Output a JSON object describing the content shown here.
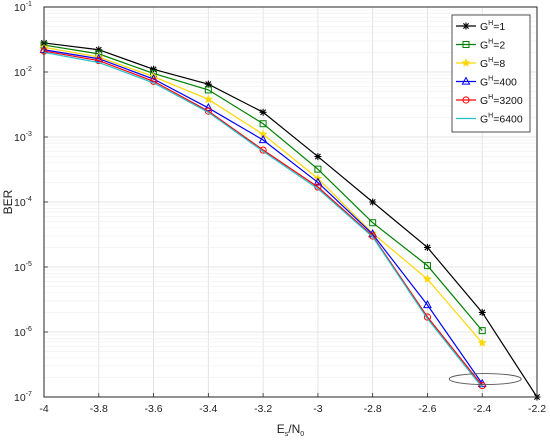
{
  "chart_data": {
    "type": "line",
    "title": "",
    "xlabel": {
      "main": "E",
      "sub1": "s",
      "mid": "/N",
      "sub2": "0"
    },
    "ylabel": "BER",
    "x_scale": "linear",
    "y_scale": "log",
    "xlim": [
      -4,
      -2.2
    ],
    "ylim": [
      1e-07,
      0.1
    ],
    "grid": true,
    "legend_position": "top-right",
    "x_ticks": [
      -4,
      -3.8,
      -3.6,
      -3.4,
      -3.2,
      -3,
      -2.8,
      -2.6,
      -2.4,
      -2.2
    ],
    "x_tick_labels": [
      "-4",
      "-3.8",
      "-3.6",
      "-3.4",
      "-3.2",
      "-3",
      "-2.8",
      "-2.6",
      "-2.4",
      "-2.2"
    ],
    "y_ticks": [
      {
        "base": "10",
        "exp": "-1"
      },
      {
        "base": "10",
        "exp": "-2"
      },
      {
        "base": "10",
        "exp": "-3"
      },
      {
        "base": "10",
        "exp": "-4"
      },
      {
        "base": "10",
        "exp": "-5"
      },
      {
        "base": "10",
        "exp": "-6"
      },
      {
        "base": "10",
        "exp": "-7"
      }
    ],
    "series": [
      {
        "name_base": "G",
        "name_sup": "H",
        "name_rest": "=1",
        "color": "#000000",
        "marker": "asterisk",
        "x": [
          -4,
          -3.8,
          -3.6,
          -3.4,
          -3.2,
          -3,
          -2.8,
          -2.6,
          -2.4,
          -2.2
        ],
        "y": [
          0.028,
          0.022,
          0.011,
          0.0065,
          0.0024,
          0.0005,
          0.0001,
          2e-05,
          2e-06,
          1e-07
        ]
      },
      {
        "name_base": "G",
        "name_sup": "H",
        "name_rest": "=2",
        "color": "#008000",
        "marker": "square",
        "x": [
          -4,
          -3.8,
          -3.6,
          -3.4,
          -3.2,
          -3,
          -2.8,
          -2.6,
          -2.4
        ],
        "y": [
          0.026,
          0.019,
          0.0095,
          0.0053,
          0.0016,
          0.00032,
          4.8e-05,
          1.05e-05,
          1.05e-06
        ]
      },
      {
        "name_base": "G",
        "name_sup": "H",
        "name_rest": "=8",
        "color": "#ffd700",
        "marker": "star",
        "x": [
          -4,
          -3.8,
          -3.6,
          -3.4,
          -3.2,
          -3,
          -2.8,
          -2.6,
          -2.4
        ],
        "y": [
          0.024,
          0.017,
          0.0085,
          0.0038,
          0.0011,
          0.00023,
          3.3e-05,
          6.5e-06,
          6.8e-07
        ]
      },
      {
        "name_base": "G",
        "name_sup": "H",
        "name_rest": "=400",
        "color": "#0000ff",
        "marker": "triangle",
        "x": [
          -4,
          -3.8,
          -3.6,
          -3.4,
          -3.2,
          -3,
          -2.8,
          -2.6,
          -2.4
        ],
        "y": [
          0.022,
          0.016,
          0.0078,
          0.0028,
          0.0009,
          0.0002,
          3.2e-05,
          2.6e-06,
          1.6e-07
        ]
      },
      {
        "name_base": "G",
        "name_sup": "H",
        "name_rest": "=3200",
        "color": "#ff0000",
        "marker": "circle",
        "x": [
          -4,
          -3.8,
          -3.6,
          -3.4,
          -3.2,
          -3,
          -2.8,
          -2.6,
          -2.4
        ],
        "y": [
          0.021,
          0.015,
          0.0072,
          0.0025,
          0.00063,
          0.00017,
          3e-05,
          1.7e-06,
          1.5e-07
        ]
      },
      {
        "name_base": "G",
        "name_sup": "H",
        "name_rest": "=6400",
        "color": "#20c0d0",
        "marker": "none",
        "x": [
          -4,
          -3.8,
          -3.6,
          -3.4,
          -3.2,
          -3,
          -2.8,
          -2.6,
          -2.4
        ],
        "y": [
          0.02,
          0.014,
          0.0068,
          0.0024,
          0.0006,
          0.00016,
          2.9e-05,
          1.6e-06,
          1.4e-07
        ]
      }
    ],
    "annotation": {
      "shape": "ellipse",
      "x": -2.4,
      "y": 1.7e-07,
      "color": "#555555"
    }
  }
}
